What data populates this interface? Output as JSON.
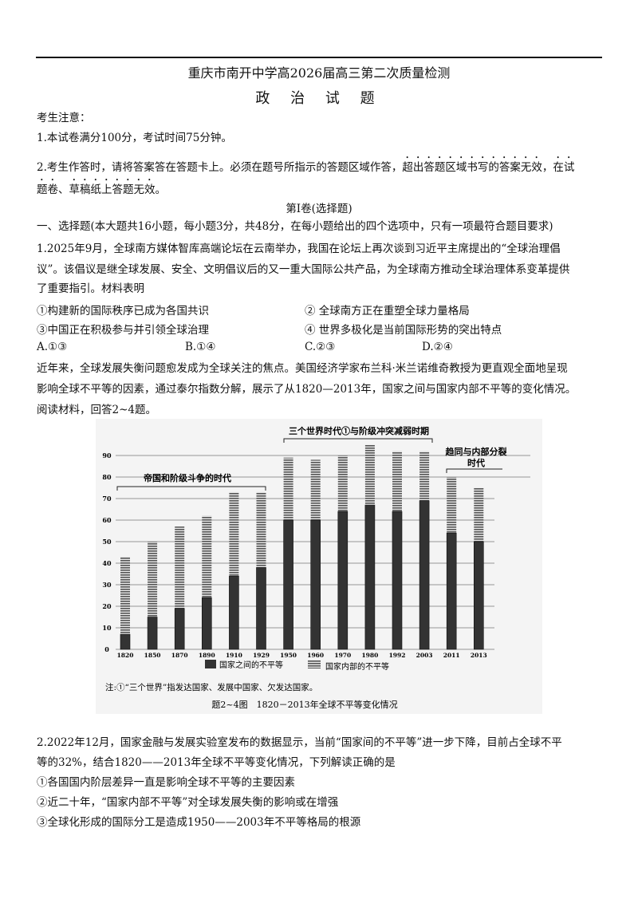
{
  "header": {
    "title": "重庆市南开中学高2026届高三第二次质量检测",
    "subject": "政 治 试 题"
  },
  "notice": {
    "heading": "考生注意：",
    "item1": "1.本试卷满分100分，考试时间75分钟。",
    "item2_a": "2.考生作答时，请将答案答在答题卡上。必须在题号所指示的答题区域作答，",
    "item2_b": "超出答题区域书写的答案无效",
    "item2_c": "，",
    "item2_d": "在试",
    "item2_e": "题卷、草稿纸上答题无效",
    "item2_f": "。"
  },
  "section": {
    "title": "第Ⅰ卷(选择题)",
    "instruction": "一、选择题(本大题共16小题，每小题3分，共48分，在每小题给出的四个选项中，只有一项最符合题目要求)"
  },
  "q1": {
    "line1": "1.2025年9月，全球南方媒体智库高端论坛在云南举办，我国在论坛上再次谈到习近平主席提出的“全球治理倡",
    "line2": "议”。该倡议是继全球发展、安全、文明倡议后的又一重大国际公共产品，为全球南方推动全球治理体系变革提供",
    "line3": "了重要指引。材料表明",
    "statements": [
      "①构建新的国际秩序已成为各国共识",
      "② 全球南方正在重塑全球力量格局",
      "③中国正在积极参与并引领全球治理",
      "④ 世界多极化是当前国际形势的突出特点"
    ],
    "options": [
      "A.①③",
      "B.①④",
      "C.②③",
      "D.②④"
    ]
  },
  "material": {
    "line1": "近年来，全球发展失衡问题愈发成为全球关注的焦点。美国经济学家布兰科·米兰诺维奇教授为更直观全面地呈现",
    "line2": "影响全球不平等的因素，通过泰尔指数分解，展示了从1820—2013年，国家之间与国家内部不平等的变化情况。",
    "line3": "阅读材料，回答2~4题。"
  },
  "chart_data": {
    "type": "bar",
    "stacked": true,
    "categories": [
      "1820",
      "1850",
      "1870",
      "1890",
      "1910",
      "1929",
      "1950",
      "1960",
      "1970",
      "1980",
      "1992",
      "2003",
      "2011",
      "2013"
    ],
    "series": [
      {
        "name": "国家之间的不平等",
        "values": [
          7,
          15,
          19,
          24,
          34,
          38,
          60,
          60,
          64,
          67,
          64,
          69,
          54,
          50
        ],
        "color": "#333333"
      },
      {
        "name": "国家内部的不平等",
        "values": [
          36,
          35,
          38,
          38,
          39,
          35,
          29,
          28,
          26,
          28,
          28,
          23,
          26,
          25
        ],
        "color": "#8a8a8a",
        "pattern": "horizontal-stripes"
      }
    ],
    "yticks": [
      0,
      10,
      20,
      30,
      40,
      50,
      60,
      70,
      80,
      90
    ],
    "ylim": [
      0,
      95
    ],
    "grid": true,
    "legend_position": "bottom",
    "period_labels": {
      "p1": "帝国和阶级斗争的时代",
      "p2": "三个世界时代①与阶级冲突减弱时期",
      "p3a": "趋同与内部分裂",
      "p3b": "时代"
    },
    "note": "注:①“三个世界”指发达国家、发展中国家、欠发达国家。",
    "title": "题2~4图　1820－2013年全球不平等变化情况"
  },
  "q2": {
    "line1": "2.2022年12月，国家金融与发展实验室发布的数据显示，当前“国家间的不平等”进一步下降，目前占全球不平",
    "line2": "等的32%，结合1820——2013年全球不平等变化情况，下列解读正确的是",
    "statements": [
      "①各国国内阶层差异一直是影响全球不平等的主要因素",
      "②近二十年，“国家内部不平等”对全球发展失衡的影响或在增强",
      "③全球化形成的国际分工是造成1950——2003年不平等格局的根源"
    ]
  }
}
